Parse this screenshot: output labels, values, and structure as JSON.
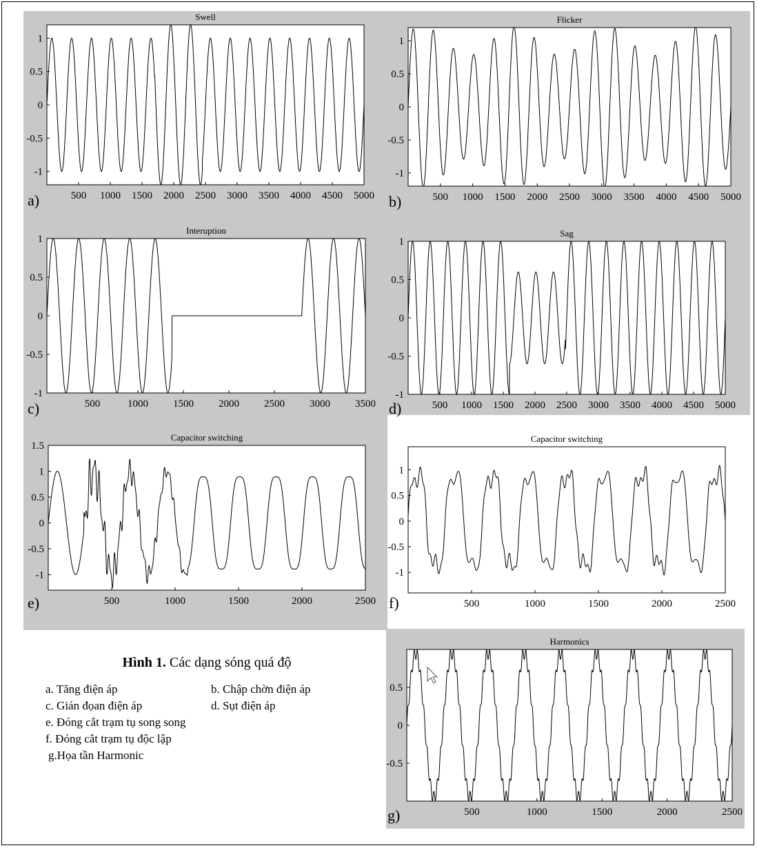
{
  "caption": {
    "title_bold": "Hình 1.",
    "title_rest": " Các dạng sóng quá độ",
    "items": [
      "a. Tăng điện áp",
      "b. Chập chờn điện áp",
      "c. Gián đọan điện áp",
      "d. Sụt điện áp",
      "e. Đóng cắt trạm tụ song song",
      "f. Đóng cắt trạm tụ độc lập",
      "g.Họa tần Harmonic"
    ]
  },
  "chart_data": [
    {
      "id": "a",
      "type": "line",
      "panel_label": "a)",
      "title": "Swell",
      "xlim": [
        0,
        5000
      ],
      "ylim": [
        -1.2,
        1.2
      ],
      "xticks": [
        500,
        1000,
        1500,
        2000,
        2500,
        3000,
        3500,
        4000,
        4500,
        5000
      ],
      "yticks": [
        1,
        0.5,
        0,
        -0.5,
        -1
      ],
      "ytick_labels": [
        "1",
        "0.5",
        "0",
        "-0.5",
        "-1"
      ],
      "signal": {
        "kind": "swell",
        "cycles": 16,
        "swell_start": 1700,
        "swell_end": 2450,
        "base": 1.0,
        "swell_amp": 1.2
      }
    },
    {
      "id": "b",
      "type": "line",
      "panel_label": "b)",
      "title": "Flicker",
      "xlim": [
        0,
        5000
      ],
      "ylim": [
        -1.2,
        1.2
      ],
      "xticks": [
        500,
        1000,
        1500,
        2000,
        2500,
        3000,
        3500,
        4000,
        4500,
        5000
      ],
      "yticks": [
        1,
        0.5,
        0,
        -0.5,
        -1
      ],
      "ytick_labels": [
        "1",
        "0.5",
        "0",
        "-0.5",
        "-1"
      ],
      "signal": {
        "kind": "flicker",
        "cycles": 16,
        "mod_depth": 0.22,
        "mod_cycles": 3.5
      }
    },
    {
      "id": "c",
      "type": "line",
      "panel_label": "c)",
      "title": "Interuption",
      "xlim": [
        0,
        3500
      ],
      "ylim": [
        -1,
        1
      ],
      "xticks": [
        500,
        1000,
        1500,
        2000,
        2500,
        3000,
        3500
      ],
      "yticks": [
        1,
        0.5,
        0,
        -0.5,
        -1
      ],
      "ytick_labels": [
        "1",
        "0.5",
        "0",
        "-0.5",
        "-1"
      ],
      "signal": {
        "kind": "interruption",
        "cycles": 12.5,
        "off_start": 1375,
        "off_end": 2800
      }
    },
    {
      "id": "d",
      "type": "line",
      "panel_label": "d)",
      "title": "Sag",
      "xlim": [
        0,
        5000
      ],
      "ylim": [
        -1,
        1
      ],
      "xticks": [
        500,
        1000,
        1500,
        2000,
        2500,
        3000,
        3500,
        4000,
        4500,
        5000
      ],
      "yticks": [
        1,
        0.5,
        0,
        -0.5,
        -1
      ],
      "ytick_labels": [
        "1",
        "0.5",
        "0",
        "-0.5",
        "-1"
      ],
      "signal": {
        "kind": "sag",
        "cycles": 18,
        "sag_start": 1600,
        "sag_end": 2480,
        "sag_amp": 0.6
      }
    },
    {
      "id": "e",
      "type": "line",
      "panel_label": "e)",
      "title": "Capacitor switching",
      "xlim": [
        0,
        2500
      ],
      "ylim": [
        -1.3,
        1.5
      ],
      "xticks": [
        500,
        1000,
        1500,
        2000,
        2500
      ],
      "yticks": [
        1.5,
        1,
        0.5,
        0,
        -0.5,
        -1
      ],
      "ytick_labels": [
        "1.5",
        "1",
        "0.5",
        "0",
        "-0.5",
        "-1"
      ],
      "signal": {
        "kind": "cap",
        "cycles": 8.7,
        "transient_start": 280,
        "transient_end": 1100,
        "ripple": 0.18
      }
    },
    {
      "id": "f",
      "type": "line",
      "panel_label": "f)",
      "title": "Capacitor switching",
      "xlim": [
        0,
        2500
      ],
      "ylim": [
        -1.4,
        1.45
      ],
      "xticks": [
        500,
        1000,
        1500,
        2000,
        2500
      ],
      "yticks": [
        1,
        0.5,
        0,
        -0.5,
        -1
      ],
      "ytick_labels": [
        "1",
        "0.5",
        "0",
        "-0.5",
        "-1"
      ],
      "signal": {
        "kind": "cap2",
        "cycles": 8.5,
        "ripple": 0.25
      }
    },
    {
      "id": "g",
      "type": "line",
      "panel_label": "g)",
      "title": "Harmonics",
      "xlim": [
        0,
        2500
      ],
      "ylim": [
        -1,
        1
      ],
      "xticks": [
        500,
        1000,
        1500,
        2000,
        2500
      ],
      "yticks": [
        0.5,
        0,
        -0.5
      ],
      "ytick_labels": [
        "0.5",
        "0",
        "-0.5"
      ],
      "signal": {
        "kind": "harm",
        "cycles": 9,
        "h_amp": 0.08,
        "h_order": 11
      }
    }
  ]
}
